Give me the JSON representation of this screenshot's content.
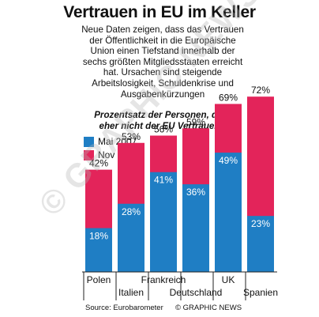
{
  "title": "Vertrauen in EU im Keller",
  "intro": "Neue Daten zeigen, dass das Vertrauen der Öffentlichkeit in die Europäische Union einen Tiefstand innerhalb der sechs größten Mitgliedsstaaten erreicht hat. Ursachen sind steigende Arbeitslosigkeit, Schuldenkrise und Ausgabenkürzungen",
  "footer": {
    "source": "Source: Eurobarometer",
    "credit": "© GRAPHIC NEWS"
  },
  "watermark": "© GRAPHIC NEWS",
  "colors": {
    "may2007": "#1f7ec4",
    "nov2012": "#e3245a",
    "axis": "#222222"
  },
  "chart_data": {
    "type": "bar",
    "subtitle": "Prozentsatz der Personen, die eher nicht der EU Vertrauen",
    "categories": [
      "Polen",
      "Italien",
      "Frankreich",
      "Deutschland",
      "UK",
      "Spanien"
    ],
    "series": [
      {
        "name": "Mai 2007",
        "values": [
          18,
          28,
          41,
          36,
          49,
          23
        ]
      },
      {
        "name": "Nov 2012",
        "values": [
          42,
          53,
          56,
          59,
          69,
          72
        ]
      }
    ],
    "value_labels": {
      "Mai 2007": [
        "18%",
        "28%",
        "41%",
        "36%",
        "49%",
        "23%"
      ],
      "Nov 2012": [
        "42%",
        "53%",
        "56%",
        "59%",
        "69%",
        "72%"
      ]
    },
    "legend_position": "top-left",
    "ylim": [
      0,
      100
    ],
    "grid": false,
    "layout": "overlapping bars, Mai 2007 in front of Nov 2012"
  }
}
